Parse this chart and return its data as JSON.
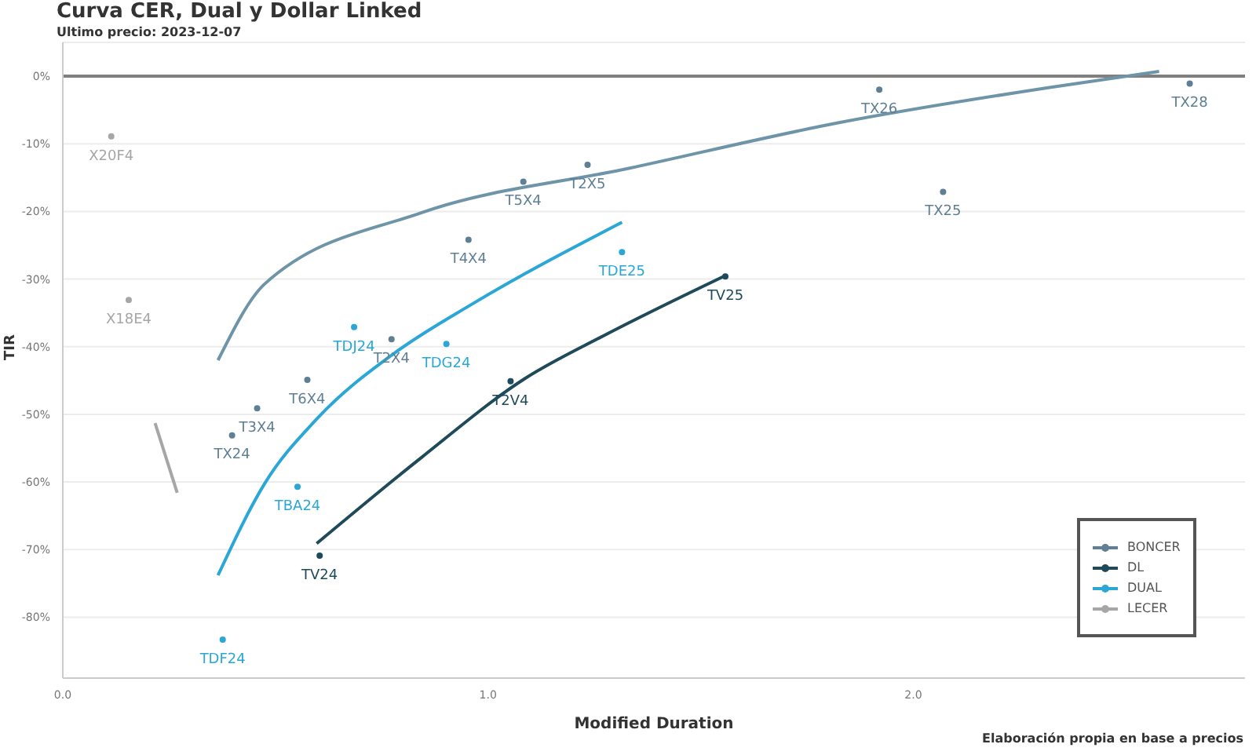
{
  "chart_data": {
    "type": "scatter",
    "title": "Curva CER, Dual y Dollar Linked",
    "subtitle": "Ultimo precio: 2023-12-07",
    "xlabel": "Modified Duration",
    "ylabel": "TIR",
    "annotations": [
      "Elaboración propia en base a precios"
    ],
    "xlim": [
      0,
      2.78
    ],
    "xticks": [
      {
        "value": 0,
        "label": "0.0"
      },
      {
        "value": 1,
        "label": "1.0"
      },
      {
        "value": 2,
        "label": "2.0"
      }
    ],
    "ylim": [
      -89,
      5
    ],
    "yticks": [
      {
        "value": 0,
        "label": "0%"
      },
      {
        "value": -10,
        "label": "-10%"
      },
      {
        "value": -20,
        "label": "-20%"
      },
      {
        "value": -30,
        "label": "-30%"
      },
      {
        "value": -40,
        "label": "-40%"
      },
      {
        "value": -50,
        "label": "-50%"
      },
      {
        "value": -60,
        "label": "-60%"
      },
      {
        "value": -70,
        "label": "-70%"
      },
      {
        "value": -80,
        "label": "-80%"
      }
    ],
    "grid": "y",
    "legend": "bottom right",
    "marker": "circle",
    "line_style": "solid",
    "ref_lines": [
      {
        "axis": "y",
        "value": 0,
        "color": "#7f7f7f"
      }
    ],
    "series": [
      {
        "name": "BONCER",
        "color": "#5f7f94",
        "x": [
          2.65,
          1.92,
          2.07,
          1.234,
          1.083,
          0.954,
          0.773,
          0.575,
          0.457,
          0.398
        ],
        "values": [
          -1.1,
          -2.0,
          -17.1,
          -13.1,
          -15.6,
          -24.2,
          -38.9,
          -44.9,
          -49.1,
          -53.1
        ],
        "value_labels": [
          "TX28",
          "TX26",
          "TX25",
          "T2X5",
          "T5X4",
          "T4X4",
          "T2X4",
          "T6X4",
          "T3X4",
          "TX24"
        ]
      },
      {
        "name": "DL",
        "color": "#1e4a5a",
        "x": [
          1.558,
          1.053,
          0.604
        ],
        "values": [
          -29.6,
          -45.1,
          -70.9
        ],
        "value_labels": [
          "TV25",
          "T2V4",
          "TV24"
        ]
      },
      {
        "name": "DUAL",
        "color": "#2aa7d6",
        "x": [
          1.315,
          0.902,
          0.685,
          0.552,
          0.376
        ],
        "values": [
          -26.0,
          -39.6,
          -37.1,
          -60.7,
          -83.3
        ],
        "value_labels": [
          "TDE25",
          "TDG24",
          "TDJ24",
          "TBA24",
          "TDF24"
        ]
      },
      {
        "name": "LECER",
        "color": "#a6a6a6",
        "x": [
          0.114,
          0.155
        ],
        "values": [
          -8.9,
          -33.1
        ],
        "value_labels": [
          "X20F4",
          "X18E4"
        ]
      },
      {
        "type": "line",
        "marker": "none",
        "color": "#6e94a8",
        "x": [
          0.365,
          0.475,
          0.843,
          1.333,
          1.823,
          2.317,
          2.578
        ],
        "values": [
          -42.0,
          -30.7,
          -20.2,
          -13.6,
          -6.9,
          -1.7,
          0.7
        ]
      },
      {
        "type": "line",
        "marker": "none",
        "color": "#1e4a5a",
        "x": [
          0.597,
          0.843,
          1.087,
          1.271,
          1.554
        ],
        "values": [
          -69.1,
          -56.4,
          -44.7,
          -38.4,
          -29.6
        ]
      },
      {
        "type": "line",
        "marker": "none",
        "color": "#2aa7d6",
        "x": [
          0.365,
          0.475,
          0.597,
          0.781,
          0.965,
          1.315
        ],
        "values": [
          -73.8,
          -60.2,
          -50.7,
          -40.9,
          -33.6,
          -21.6
        ]
      },
      {
        "type": "line",
        "marker": "none",
        "color": "#a6a6a6",
        "x": [
          0.217,
          0.269
        ],
        "values": [
          -51.3,
          -61.6
        ]
      }
    ]
  }
}
